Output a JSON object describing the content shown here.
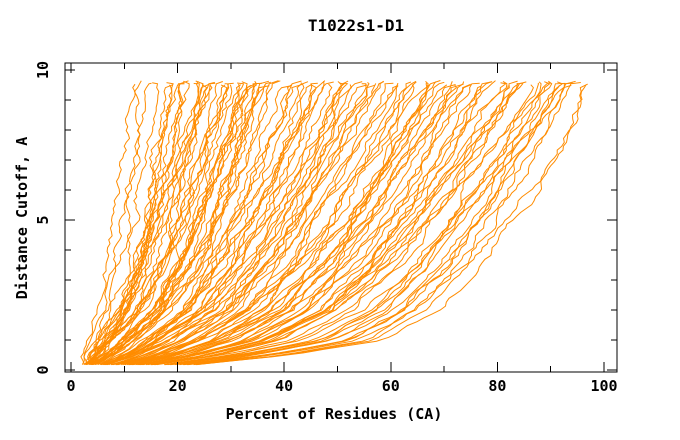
{
  "chart_data": {
    "type": "line",
    "title": "T1022s1-D1",
    "xlabel": "Percent of Residues (CA)",
    "ylabel": "Distance Cutoff, A",
    "xlim": [
      -1.2,
      102.5
    ],
    "ylim": [
      -0.07,
      10.23
    ],
    "x_ticks_major": [
      0,
      20,
      40,
      60,
      80,
      100
    ],
    "x_ticks_minor": [
      10,
      30,
      50,
      70,
      90
    ],
    "y_ticks_major": [
      0,
      5,
      10
    ],
    "y_ticks_minor": [
      1,
      2,
      3,
      4,
      6,
      7,
      8,
      9
    ],
    "grid": false,
    "legend": null,
    "line_color": "#ff8c00",
    "axis_color": "#000000",
    "background_color": "#ffffff",
    "render_passes": 2,
    "curve_y_levels": [
      0.18,
      0.5,
      1.0,
      2.0,
      3.5,
      5.5,
      7.5,
      9.65
    ],
    "series": [
      [
        3,
        3.2,
        4.5,
        6.5,
        8.4,
        10,
        11.3,
        12.5
      ],
      [
        3,
        3.5,
        5,
        7.4,
        9.3,
        11.2,
        12.9,
        14.5
      ],
      [
        3,
        3.9,
        5.5,
        8.6,
        11.1,
        13.6,
        15.8,
        18
      ],
      [
        3,
        4.2,
        6,
        9.4,
        12.1,
        14.8,
        17.1,
        19.5
      ],
      [
        3,
        3.5,
        5,
        8.9,
        12,
        15.1,
        17.7,
        20.5
      ],
      [
        3,
        4.6,
        6.5,
        10.3,
        13.3,
        16.3,
        18.8,
        21.5
      ],
      [
        3.2,
        4.9,
        7,
        11,
        14.2,
        17.4,
        20.1,
        23
      ],
      [
        3,
        4.2,
        6,
        10.6,
        14.3,
        18,
        21.2,
        24.5
      ],
      [
        3.2,
        4.9,
        7,
        11.8,
        15.6,
        19.4,
        22.6,
        26
      ],
      [
        3.4,
        5.6,
        8,
        12.8,
        16.6,
        20.4,
        23.6,
        27
      ],
      [
        3.2,
        5.3,
        7.5,
        12.8,
        16.9,
        21.2,
        24.7,
        28.5
      ],
      [
        3.6,
        6.3,
        9,
        14.1,
        18.2,
        22.3,
        25.8,
        29.5
      ],
      [
        3.4,
        6,
        8.5,
        14,
        18.4,
        22.8,
        26.6,
        30.5
      ],
      [
        4,
        7,
        10,
        15.4,
        19.7,
        24,
        27.6,
        31.5
      ],
      [
        3.8,
        6.7,
        9.5,
        15.3,
        19.9,
        24.5,
        28.4,
        32.5
      ],
      [
        4.4,
        7.7,
        11,
        16.6,
        21.1,
        25.6,
        29.5,
        33.5
      ],
      [
        4.2,
        7.4,
        10.5,
        16.5,
        21.3,
        26.1,
        30.2,
        34.5
      ],
      [
        4.8,
        8.4,
        12,
        17.9,
        22.6,
        27.3,
        31.3,
        35.5
      ],
      [
        4.4,
        7.7,
        11,
        17.4,
        22.5,
        27.6,
        31.9,
        36.5
      ],
      [
        5.2,
        9.1,
        13,
        19.3,
        24.3,
        29.3,
        33.5,
        38
      ],
      [
        5,
        8.8,
        12.5,
        19.3,
        24.7,
        30.1,
        34.6,
        39.5
      ],
      [
        5.6,
        9.8,
        14,
        20.8,
        26.2,
        31.6,
        36.1,
        41
      ],
      [
        5.4,
        9.5,
        13.5,
        20.8,
        26.6,
        32.4,
        37.3,
        42.5
      ],
      [
        6,
        10.5,
        15,
        22.3,
        28.1,
        33.9,
        38.8,
        44
      ],
      [
        6.4,
        11.2,
        16,
        23.4,
        29.3,
        35.2,
        40.2,
        45.5
      ],
      [
        5.8,
        10.2,
        14.5,
        22.6,
        29.1,
        35.6,
        41.2,
        47
      ],
      [
        6.8,
        11.9,
        17,
        24.8,
        31,
        37.2,
        42.4,
        48
      ],
      [
        6.6,
        11.6,
        16.5,
        24.8,
        31.4,
        38,
        43.6,
        49.5
      ],
      [
        7.2,
        12.6,
        18,
        26.1,
        32.6,
        39.1,
        44.7,
        50.5
      ],
      [
        7.2,
        12.6,
        18,
        26.5,
        33.3,
        40.1,
        45.9,
        52
      ],
      [
        8,
        14,
        20,
        28.5,
        35.3,
        42.1,
        47.9,
        54
      ],
      [
        7.6,
        13.3,
        19,
        28.3,
        35.7,
        43.1,
        49.3,
        56
      ],
      [
        8.8,
        15.4,
        22,
        30.9,
        38,
        45.1,
        51.1,
        57.5
      ],
      [
        8.4,
        14.7,
        21,
        30.5,
        38.1,
        45.7,
        52.2,
        59
      ],
      [
        9.6,
        16.8,
        24,
        33.1,
        40.4,
        47.7,
        53.9,
        60.5
      ],
      [
        9.2,
        16.1,
        23,
        32.8,
        40.6,
        48.4,
        55,
        62
      ],
      [
        10.4,
        18.2,
        26,
        35.4,
        42.9,
        50.4,
        56.8,
        63.5
      ],
      [
        10,
        17.5,
        25,
        35,
        43,
        51,
        57.8,
        65
      ],
      [
        11.2,
        19.6,
        28,
        37.6,
        45.3,
        53,
        59.6,
        66.5
      ],
      [
        10.8,
        18.9,
        27,
        37.3,
        45.5,
        53.7,
        60.6,
        68
      ],
      [
        12,
        21,
        30,
        39.9,
        47.8,
        55.7,
        62.4,
        69.5
      ],
      [
        11.6,
        20.3,
        29,
        39.5,
        47.9,
        56.3,
        63.4,
        71
      ],
      [
        12.8,
        22.4,
        32,
        42.1,
        50.2,
        58.3,
        65.2,
        72.5
      ],
      [
        12.4,
        21.7,
        31,
        41.8,
        50.4,
        59,
        66.3,
        74
      ],
      [
        13.6,
        23.8,
        34,
        44.4,
        52.7,
        61,
        68,
        75.5
      ],
      [
        13.2,
        23.1,
        33,
        44,
        52.8,
        61.6,
        69.1,
        77
      ],
      [
        14.4,
        25.2,
        36,
        46.6,
        55.1,
        63.6,
        70.9,
        78.5
      ],
      [
        14,
        24.5,
        35,
        46.3,
        55.3,
        64.3,
        71.9,
        80
      ],
      [
        15.2,
        26.6,
        38,
        48.9,
        57.6,
        66.3,
        73.7,
        81.5
      ],
      [
        14.8,
        25.9,
        37,
        48.5,
        57.7,
        66.9,
        74.7,
        83
      ],
      [
        16,
        28,
        40,
        51.1,
        60,
        68.9,
        76.5,
        84.5
      ],
      [
        16.8,
        29.4,
        42,
        53,
        61.8,
        70.6,
        78.1,
        86
      ],
      [
        17.6,
        30.8,
        44,
        54.9,
        63.6,
        72.3,
        79.7,
        87.5
      ],
      [
        18.4,
        32.2,
        46,
        56.8,
        65.4,
        74,
        81.3,
        89
      ],
      [
        19.2,
        33.6,
        48,
        58.6,
        67.1,
        75.6,
        82.8,
        90.5
      ],
      [
        20,
        35,
        50,
        60.5,
        68.9,
        77.3,
        84.4,
        92
      ],
      [
        20.8,
        36.4,
        52,
        62.4,
        70.7,
        79,
        86,
        93.5
      ],
      [
        22,
        38.5,
        55,
        65,
        73,
        81,
        88.5,
        95
      ],
      [
        23.2,
        40.6,
        58,
        67.6,
        75.8,
        84.5,
        91.5,
        96.5
      ]
    ]
  }
}
